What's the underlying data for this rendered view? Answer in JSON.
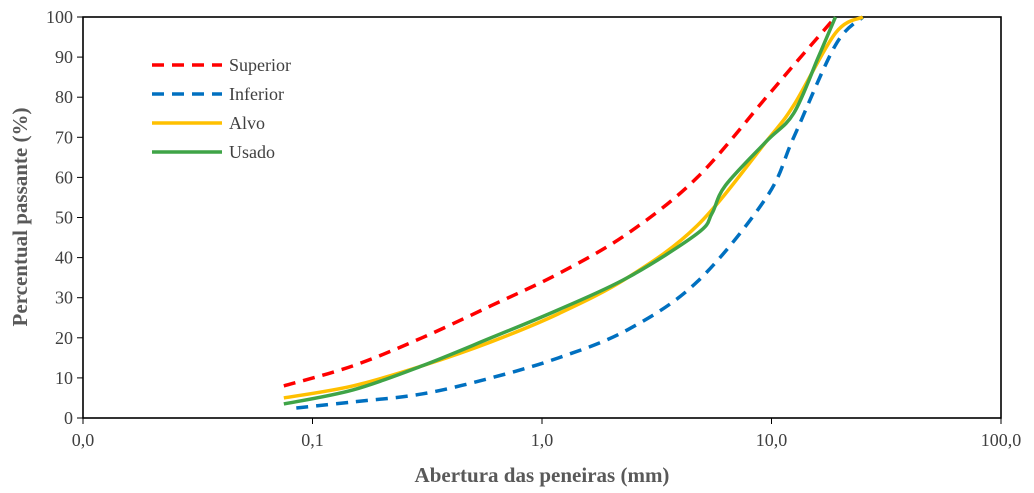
{
  "chart_data": {
    "type": "line",
    "title": "",
    "xlabel": "Abertura das peneiras (mm)",
    "ylabel": "Percentual passante (%)",
    "x_scale": "log",
    "xlim": [
      0.01,
      100
    ],
    "ylim": [
      0,
      100
    ],
    "x_ticks": [
      0.01,
      0.1,
      1,
      10,
      100
    ],
    "x_tick_labels": [
      "0,0",
      "0,1",
      "1,0",
      "10,0",
      "100,0"
    ],
    "y_ticks": [
      0,
      10,
      20,
      30,
      40,
      50,
      60,
      70,
      80,
      90,
      100
    ],
    "y_tick_labels": [
      "0",
      "10",
      "20",
      "30",
      "40",
      "50",
      "60",
      "70",
      "80",
      "90",
      "100"
    ],
    "grid": false,
    "legend_position": "top-left",
    "series": [
      {
        "name": "Superior",
        "color": "#FF0000",
        "dash": "dashed",
        "points": [
          [
            0.075,
            8
          ],
          [
            0.15,
            13
          ],
          [
            0.3,
            20
          ],
          [
            0.6,
            28
          ],
          [
            1.18,
            36
          ],
          [
            2.36,
            46
          ],
          [
            4.75,
            60
          ],
          [
            9.5,
            80
          ],
          [
            12.5,
            88
          ],
          [
            19,
            100
          ]
        ]
      },
      {
        "name": "Inferior",
        "color": "#0070C0",
        "dash": "dashed",
        "points": [
          [
            0.085,
            2.5
          ],
          [
            0.15,
            4
          ],
          [
            0.3,
            6
          ],
          [
            0.6,
            10
          ],
          [
            1.18,
            15
          ],
          [
            2.36,
            22
          ],
          [
            4.75,
            34
          ],
          [
            9.5,
            55
          ],
          [
            12.5,
            70
          ],
          [
            19,
            93
          ],
          [
            25,
            100
          ]
        ]
      },
      {
        "name": "Alvo",
        "color": "#FFC000",
        "dash": "solid",
        "points": [
          [
            0.075,
            5
          ],
          [
            0.15,
            8
          ],
          [
            0.3,
            13
          ],
          [
            0.6,
            19
          ],
          [
            1.18,
            26
          ],
          [
            2.36,
            35
          ],
          [
            4.75,
            48
          ],
          [
            9.5,
            69
          ],
          [
            12.5,
            78
          ],
          [
            19,
            96
          ],
          [
            25,
            100
          ]
        ]
      },
      {
        "name": "Usado",
        "color": "#3FA447",
        "dash": "solid",
        "points": [
          [
            0.075,
            3.5
          ],
          [
            0.15,
            7
          ],
          [
            0.3,
            13
          ],
          [
            0.6,
            20
          ],
          [
            1.18,
            27
          ],
          [
            2.36,
            35
          ],
          [
            4.75,
            46
          ],
          [
            5.5,
            51
          ],
          [
            6.3,
            58
          ],
          [
            9.5,
            69
          ],
          [
            12.5,
            76
          ],
          [
            16,
            90
          ],
          [
            19,
            100
          ]
        ]
      }
    ]
  }
}
